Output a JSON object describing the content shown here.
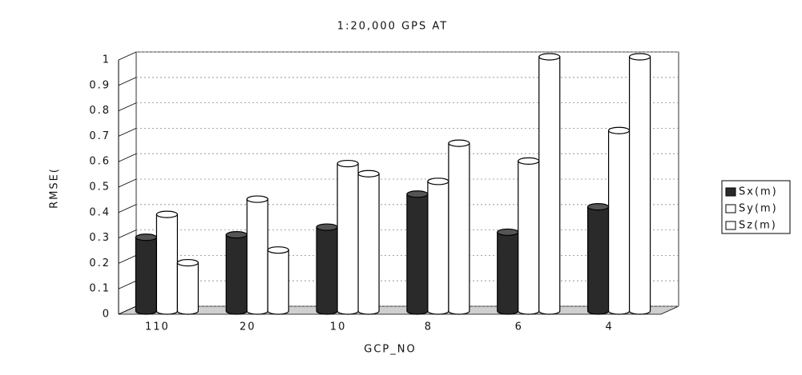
{
  "chart_data": {
    "type": "bar",
    "title": "1:20,000 GPS AT",
    "x_label": "GCP_NO",
    "y_label": "RMSE(",
    "categories": [
      "110",
      "20",
      "10",
      "8",
      "6",
      "4"
    ],
    "series": [
      {
        "name": "Sx(m)",
        "color": "#2a2a2a",
        "values": [
          0.29,
          0.3,
          0.33,
          0.46,
          0.31,
          0.41
        ]
      },
      {
        "name": "Sy(m)",
        "color": "#ffffff",
        "values": [
          0.38,
          0.44,
          0.58,
          0.51,
          0.59,
          0.71
        ]
      },
      {
        "name": "Sz(m)",
        "color": "#ffffff",
        "values": [
          0.19,
          0.24,
          0.54,
          0.66,
          1.0,
          1.0
        ]
      }
    ],
    "ylim": [
      0,
      1
    ],
    "yticks": [
      0,
      0.1,
      0.2,
      0.3,
      0.4,
      0.5,
      0.6,
      0.7,
      0.8,
      0.9,
      1
    ],
    "grid": true,
    "legend": "right"
  }
}
